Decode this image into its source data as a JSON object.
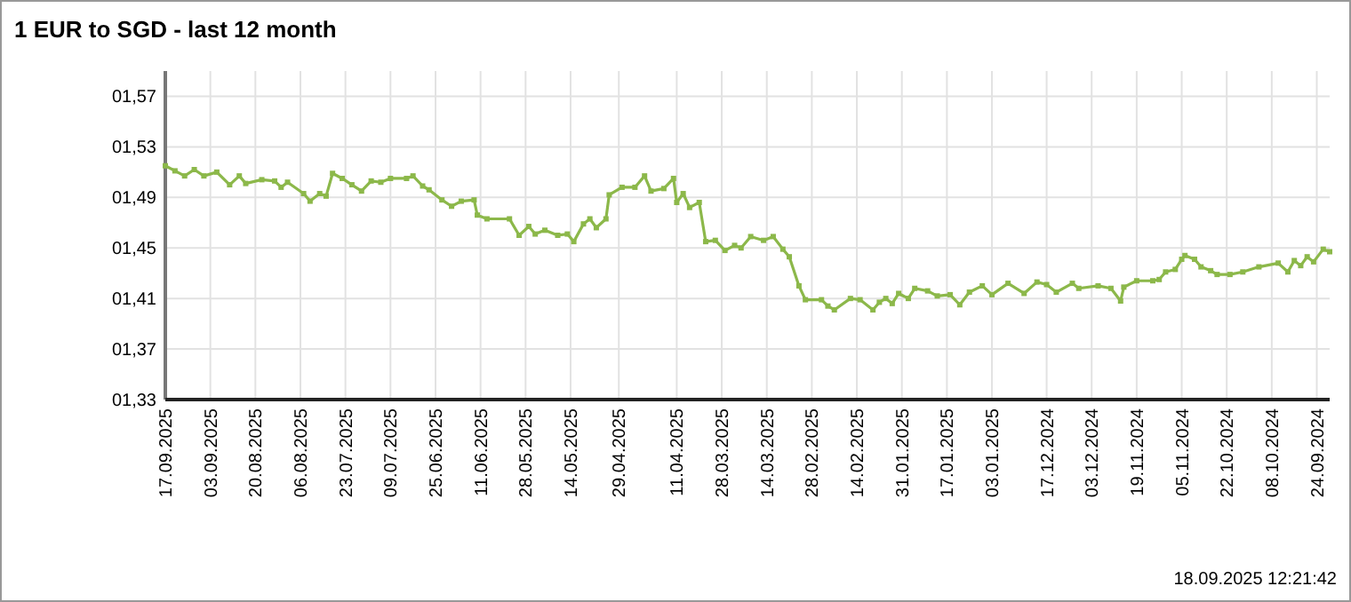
{
  "chart_data": {
    "type": "line",
    "title": "1 EUR to SGD - last 12 month",
    "annotations": [
      "18.09.2025 12:21:42"
    ],
    "xlim": [
      "2025-09-17",
      "2024-09-20"
    ],
    "xticks": [
      {
        "value": "2025-09-17",
        "label": "17.09.2025"
      },
      {
        "value": "2025-09-03",
        "label": "03.09.2025"
      },
      {
        "value": "2025-08-20",
        "label": "20.08.2025"
      },
      {
        "value": "2025-08-06",
        "label": "06.08.2025"
      },
      {
        "value": "2025-07-23",
        "label": "23.07.2025"
      },
      {
        "value": "2025-07-09",
        "label": "09.07.2025"
      },
      {
        "value": "2025-06-25",
        "label": "25.06.2025"
      },
      {
        "value": "2025-06-11",
        "label": "11.06.2025"
      },
      {
        "value": "2025-05-28",
        "label": "28.05.2025"
      },
      {
        "value": "2025-05-14",
        "label": "14.05.2025"
      },
      {
        "value": "2025-04-29",
        "label": "29.04.2025"
      },
      {
        "value": "2025-04-11",
        "label": "11.04.2025"
      },
      {
        "value": "2025-03-28",
        "label": "28.03.2025"
      },
      {
        "value": "2025-03-14",
        "label": "14.03.2025"
      },
      {
        "value": "2025-02-28",
        "label": "28.02.2025"
      },
      {
        "value": "2025-02-14",
        "label": "14.02.2025"
      },
      {
        "value": "2025-01-31",
        "label": "31.01.2025"
      },
      {
        "value": "2025-01-17",
        "label": "17.01.2025"
      },
      {
        "value": "2025-01-03",
        "label": "03.01.2025"
      },
      {
        "value": "2024-12-17",
        "label": "17.12.2024"
      },
      {
        "value": "2024-12-03",
        "label": "03.12.2024"
      },
      {
        "value": "2024-11-19",
        "label": "19.11.2024"
      },
      {
        "value": "2024-11-05",
        "label": "05.11.2024"
      },
      {
        "value": "2024-10-22",
        "label": "22.10.2024"
      },
      {
        "value": "2024-10-08",
        "label": "08.10.2024"
      },
      {
        "value": "2024-09-24",
        "label": "24.09.2024"
      }
    ],
    "ylim": [
      1.33,
      1.59
    ],
    "yticks": [
      {
        "value": 1.33,
        "label": "01,33"
      },
      {
        "value": 1.37,
        "label": "01,37"
      },
      {
        "value": 1.41,
        "label": "01,41"
      },
      {
        "value": 1.45,
        "label": "01,45"
      },
      {
        "value": 1.49,
        "label": "01,49"
      },
      {
        "value": 1.53,
        "label": "01,53"
      },
      {
        "value": 1.57,
        "label": "01,57"
      }
    ],
    "grid": true,
    "marker": "square",
    "line_style": "solid",
    "x": [
      "2025-09-17",
      "2025-09-14",
      "2025-09-11",
      "2025-09-08",
      "2025-09-05",
      "2025-09-01",
      "2025-08-28",
      "2025-08-25",
      "2025-08-23",
      "2025-08-18",
      "2025-08-14",
      "2025-08-12",
      "2025-08-10",
      "2025-08-05",
      "2025-08-03",
      "2025-07-31",
      "2025-07-29",
      "2025-07-27",
      "2025-07-24",
      "2025-07-21",
      "2025-07-18",
      "2025-07-15",
      "2025-07-12",
      "2025-07-09",
      "2025-07-04",
      "2025-07-02",
      "2025-06-29",
      "2025-06-27",
      "2025-06-23",
      "2025-06-20",
      "2025-06-17",
      "2025-06-13",
      "2025-06-12",
      "2025-06-09",
      "2025-06-02",
      "2025-05-30",
      "2025-05-27",
      "2025-05-25",
      "2025-05-22",
      "2025-05-18",
      "2025-05-15",
      "2025-05-13",
      "2025-05-10",
      "2025-05-08",
      "2025-05-06",
      "2025-05-03",
      "2025-05-02",
      "2025-04-28",
      "2025-04-24",
      "2025-04-21",
      "2025-04-19",
      "2025-04-15",
      "2025-04-12",
      "2025-04-11",
      "2025-04-09",
      "2025-04-07",
      "2025-04-04",
      "2025-04-02",
      "2025-03-30",
      "2025-03-27",
      "2025-03-24",
      "2025-03-22",
      "2025-03-19",
      "2025-03-15",
      "2025-03-12",
      "2025-03-09",
      "2025-03-07",
      "2025-03-04",
      "2025-03-02",
      "2025-02-25",
      "2025-02-23",
      "2025-02-21",
      "2025-02-16",
      "2025-02-13",
      "2025-02-09",
      "2025-02-07",
      "2025-02-05",
      "2025-02-03",
      "2025-02-01",
      "2025-01-29",
      "2025-01-27",
      "2025-01-23",
      "2025-01-20",
      "2025-01-16",
      "2025-01-13",
      "2025-01-10",
      "2025-01-06",
      "2025-01-03",
      "2024-12-29",
      "2024-12-24",
      "2024-12-20",
      "2024-12-17",
      "2024-12-14",
      "2024-12-09",
      "2024-12-07",
      "2024-12-01",
      "2024-11-27",
      "2024-11-24",
      "2024-11-23",
      "2024-11-19",
      "2024-11-14",
      "2024-11-12",
      "2024-11-10",
      "2024-11-07",
      "2024-11-05",
      "2024-11-04",
      "2024-11-01",
      "2024-10-30",
      "2024-10-27",
      "2024-10-25",
      "2024-10-21",
      "2024-10-17",
      "2024-10-12",
      "2024-10-06",
      "2024-10-03",
      "2024-10-01",
      "2024-09-29",
      "2024-09-27",
      "2024-09-25",
      "2024-09-22",
      "2024-09-20"
    ],
    "series": [
      {
        "color": "#8cb84a",
        "values": [
          1.515,
          1.511,
          1.507,
          1.512,
          1.507,
          1.51,
          1.5,
          1.507,
          1.501,
          1.504,
          1.503,
          1.498,
          1.502,
          1.493,
          1.487,
          1.493,
          1.491,
          1.509,
          1.505,
          1.5,
          1.495,
          1.503,
          1.502,
          1.505,
          1.505,
          1.507,
          1.499,
          1.496,
          1.488,
          1.483,
          1.487,
          1.488,
          1.476,
          1.473,
          1.473,
          1.46,
          1.467,
          1.461,
          1.464,
          1.46,
          1.461,
          1.455,
          1.469,
          1.473,
          1.466,
          1.473,
          1.492,
          1.498,
          1.498,
          1.507,
          1.495,
          1.497,
          1.505,
          1.486,
          1.493,
          1.482,
          1.486,
          1.455,
          1.456,
          1.448,
          1.452,
          1.45,
          1.459,
          1.456,
          1.459,
          1.449,
          1.443,
          1.42,
          1.409,
          1.409,
          1.404,
          1.401,
          1.41,
          1.409,
          1.401,
          1.407,
          1.41,
          1.406,
          1.414,
          1.41,
          1.418,
          1.416,
          1.412,
          1.413,
          1.405,
          1.415,
          1.42,
          1.413,
          1.422,
          1.414,
          1.423,
          1.421,
          1.415,
          1.422,
          1.418,
          1.42,
          1.418,
          1.408,
          1.419,
          1.424,
          1.424,
          1.425,
          1.431,
          1.433,
          1.441,
          1.444,
          1.441,
          1.435,
          1.432,
          1.429,
          1.429,
          1.431,
          1.435,
          1.438,
          1.431,
          1.44,
          1.436,
          1.443,
          1.439,
          1.449,
          1.447
        ]
      }
    ]
  }
}
